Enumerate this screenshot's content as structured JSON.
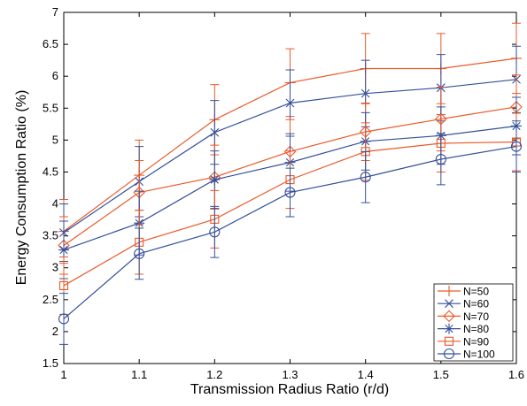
{
  "chart_data": {
    "type": "line",
    "xlabel": "Transmission Radius Ratio (r/d)",
    "ylabel": "Energy Consumption Ratio (%)",
    "xlim": [
      1,
      1.6
    ],
    "ylim": [
      1.5,
      7
    ],
    "x": [
      1,
      1.1,
      1.2,
      1.3,
      1.4,
      1.5,
      1.6
    ],
    "xticks": [
      "1",
      "1.1",
      "1.2",
      "1.3",
      "1.4",
      "1.5",
      "1.6"
    ],
    "yticks": [
      "1.5",
      "2",
      "2.5",
      "3",
      "3.5",
      "4",
      "4.5",
      "5",
      "5.5",
      "6",
      "6.5",
      "7"
    ],
    "grid": false,
    "legend_position": "bottom-right",
    "series": [
      {
        "name": "N=50",
        "color": "#ea5a2a",
        "marker": "plus",
        "values": [
          3.57,
          4.45,
          5.32,
          5.9,
          6.12,
          6.12,
          6.28
        ],
        "errors": [
          0.5,
          0.55,
          0.55,
          0.53,
          0.55,
          0.55,
          0.55
        ]
      },
      {
        "name": "N=60",
        "color": "#35509a",
        "marker": "x",
        "values": [
          3.55,
          4.35,
          5.12,
          5.58,
          5.73,
          5.82,
          5.95
        ],
        "errors": [
          0.45,
          0.55,
          0.5,
          0.52,
          0.52,
          0.52,
          0.52
        ]
      },
      {
        "name": "N=70",
        "color": "#ea5a2a",
        "marker": "diamond",
        "values": [
          3.35,
          4.18,
          4.42,
          4.82,
          5.13,
          5.33,
          5.52
        ],
        "errors": [
          0.45,
          0.5,
          0.5,
          0.5,
          0.45,
          0.5,
          0.5
        ]
      },
      {
        "name": "N=80",
        "color": "#35509a",
        "marker": "star",
        "values": [
          3.28,
          3.7,
          4.38,
          4.65,
          4.98,
          5.07,
          5.22
        ],
        "errors": [
          0.45,
          0.5,
          0.45,
          0.45,
          0.45,
          0.45,
          0.45
        ]
      },
      {
        "name": "N=90",
        "color": "#ea5a2a",
        "marker": "square",
        "values": [
          2.72,
          3.4,
          3.76,
          4.38,
          4.82,
          4.95,
          4.97
        ],
        "errors": [
          0.45,
          0.5,
          0.45,
          0.45,
          0.45,
          0.45,
          0.45
        ]
      },
      {
        "name": "N=100",
        "color": "#35509a",
        "marker": "circle",
        "values": [
          2.2,
          3.22,
          3.56,
          4.18,
          4.42,
          4.7,
          4.9
        ],
        "errors": [
          0.4,
          0.4,
          0.4,
          0.38,
          0.4,
          0.4,
          0.4
        ]
      }
    ]
  }
}
